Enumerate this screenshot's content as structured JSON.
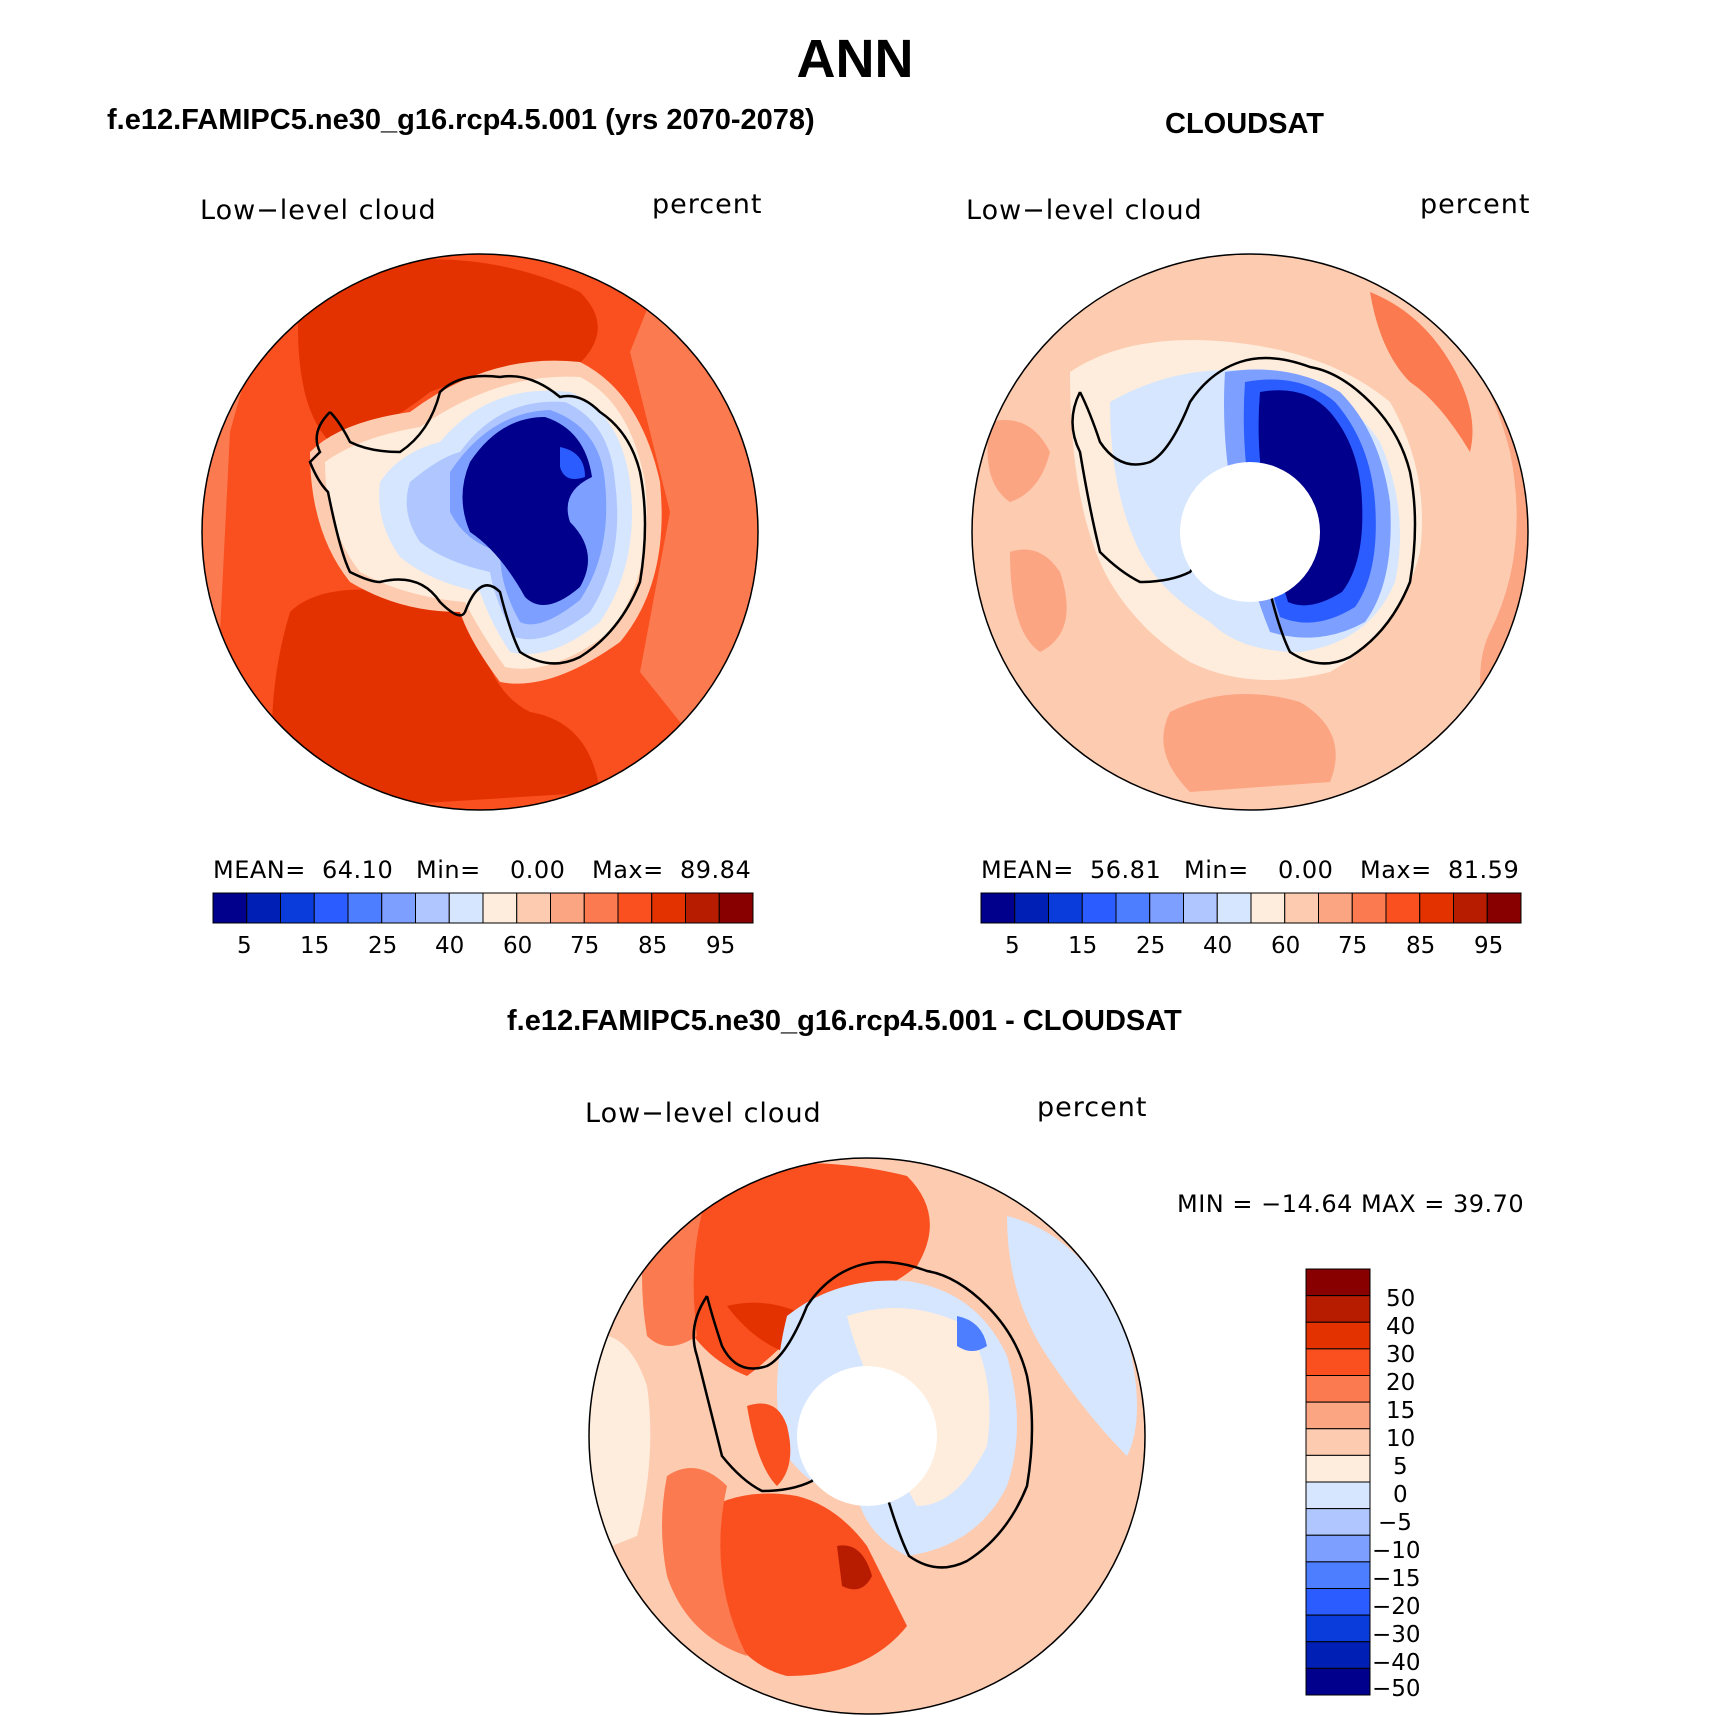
{
  "page_title": "ANN",
  "panels": [
    {
      "id": "model",
      "subtitle": "f.e12.FAMIPC5.ne30_g16.rcp4.5.001 (yrs 2070-2078)",
      "left_label": "Low−level cloud",
      "right_label": "percent",
      "mean_label": "MEAN=",
      "mean": "64.10",
      "min_label": "Min=",
      "min": "0.00",
      "max_label": "Max=",
      "max": "89.84"
    },
    {
      "id": "obs",
      "subtitle": "CLOUDSAT",
      "left_label": "Low−level cloud",
      "right_label": "percent",
      "mean_label": "MEAN=",
      "mean": "56.81",
      "min_label": "Min=",
      "min": "0.00",
      "max_label": "Max=",
      "max": "81.59"
    },
    {
      "id": "diff",
      "subtitle": "f.e12.FAMIPC5.ne30_g16.rcp4.5.001 - CLOUDSAT",
      "left_label": "Low−level cloud",
      "right_label": "percent",
      "minmax": "MIN = −14.64 MAX =   39.70"
    }
  ],
  "colors": {
    "c0": "#00008c",
    "c1": "#001fb4",
    "c2": "#0a3cdc",
    "c3": "#2a5cff",
    "c4": "#4d7eff",
    "c5": "#7d9fff",
    "c6": "#afc6ff",
    "c7": "#d6e6ff",
    "c8": "#feeddc",
    "c9": "#fdcbb0",
    "c10": "#fca583",
    "c11": "#fc7a4f",
    "c12": "#fa4f1f",
    "c13": "#e33200",
    "c14": "#b81c00",
    "c15": "#880000"
  },
  "chart_data": [
    {
      "type": "contour_map",
      "projection": "south polar stereographic",
      "title": "f.e12.FAMIPC5.ne30_g16.rcp4.5.001 (yrs 2070-2078)",
      "variable": "Low-level cloud",
      "units": "percent",
      "mean": 64.1,
      "min": 0.0,
      "max": 89.84,
      "colorbar_ticks": [
        "5",
        "15",
        "25",
        "40",
        "60",
        "75",
        "85",
        "95"
      ],
      "levels": [
        5,
        10,
        15,
        20,
        25,
        30,
        40,
        50,
        60,
        70,
        75,
        80,
        85,
        90,
        95
      ]
    },
    {
      "type": "contour_map",
      "projection": "south polar stereographic",
      "title": "CLOUDSAT",
      "variable": "Low-level cloud",
      "units": "percent",
      "mean": 56.81,
      "min": 0.0,
      "max": 81.59,
      "colorbar_ticks": [
        "5",
        "15",
        "25",
        "40",
        "60",
        "75",
        "85",
        "95"
      ],
      "levels": [
        5,
        10,
        15,
        20,
        25,
        30,
        40,
        50,
        60,
        70,
        75,
        80,
        85,
        90,
        95
      ]
    },
    {
      "type": "contour_map",
      "projection": "south polar stereographic",
      "title": "f.e12.FAMIPC5.ne30_g16.rcp4.5.001 - CLOUDSAT",
      "variable": "Low-level cloud",
      "units": "percent",
      "min": -14.64,
      "max": 39.7,
      "colorbar_ticks": [
        "50",
        "40",
        "30",
        "20",
        "15",
        "10",
        "5",
        "0",
        "−5",
        "−10",
        "−15",
        "−20",
        "−30",
        "−40",
        "−50"
      ]
    }
  ]
}
